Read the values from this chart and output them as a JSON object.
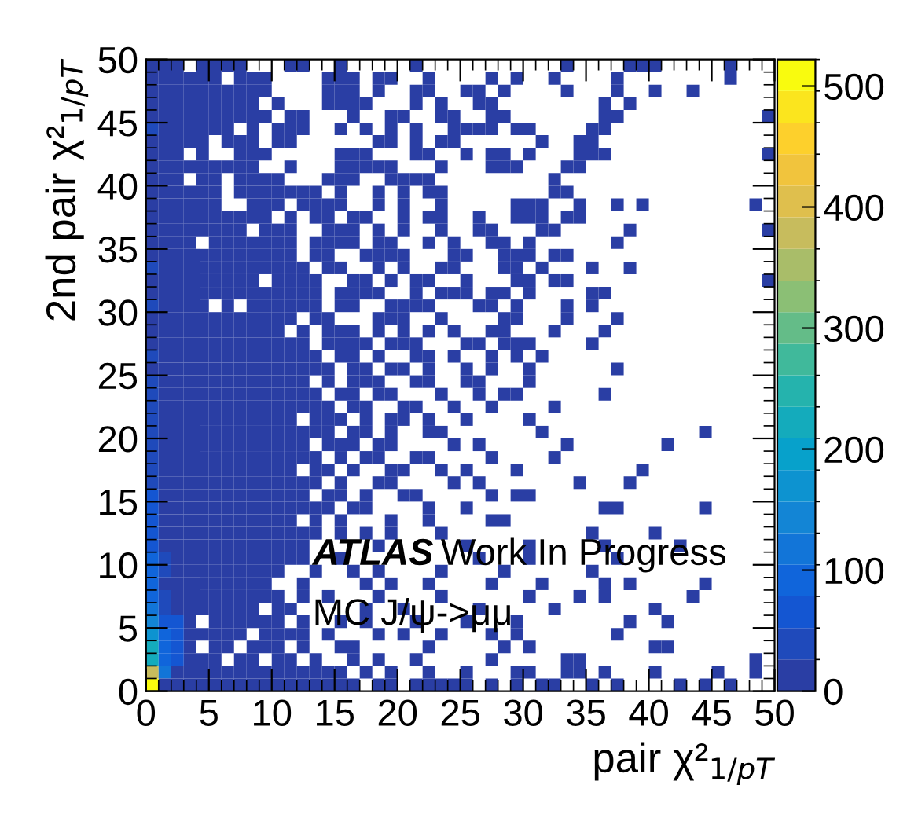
{
  "chart_data": {
    "type": "heatmap",
    "xlabel": "pair χ²$_{1/pT}$",
    "ylabel": "2nd pair χ²$_{1/pT}$",
    "annotations": [
      "ATLAS",
      "Work In Progress",
      "MC J/ψ->μμ"
    ],
    "xlim": [
      0,
      50
    ],
    "ylim": [
      0,
      50
    ],
    "xticks": [
      0,
      5,
      10,
      15,
      20,
      25,
      30,
      35,
      40,
      45,
      50
    ],
    "yticks": [
      0,
      5,
      10,
      15,
      20,
      25,
      30,
      35,
      40,
      45,
      50
    ],
    "clim": [
      0,
      522
    ],
    "cticks": [
      0,
      100,
      200,
      300,
      400,
      500
    ],
    "colors": [
      "#2a3ea4",
      "#0f5cdd",
      "#1481d6",
      "#06a4ca",
      "#2eb7a4",
      "#87bf77",
      "#d1bb59",
      "#fec832",
      "#f9fb0e"
    ],
    "cells": [
      [
        15,
        5,
        5,
        null,
        5,
        5,
        5,
        5,
        null,
        null,
        null,
        5,
        5,
        null,
        null,
        5,
        null,
        null,
        null,
        null,
        null,
        5,
        null,
        null,
        null,
        null,
        null,
        null,
        null,
        null,
        null,
        null,
        null,
        5,
        null,
        null,
        null,
        null,
        5,
        5,
        5,
        null,
        null,
        null,
        null,
        null,
        5,
        null,
        null,
        null
      ],
      [
        15,
        5,
        5,
        5,
        5,
        5,
        null,
        5,
        5,
        5,
        null,
        null,
        null,
        null,
        5,
        5,
        5,
        null,
        5,
        5,
        null,
        null,
        5,
        null,
        null,
        null,
        null,
        5,
        null,
        5,
        null,
        null,
        5,
        null,
        null,
        null,
        null,
        5,
        null,
        null,
        null,
        null,
        null,
        null,
        null,
        null,
        5,
        null,
        null,
        null
      ],
      [
        15,
        5,
        5,
        5,
        5,
        5,
        5,
        5,
        5,
        5,
        null,
        null,
        null,
        null,
        5,
        5,
        5,
        null,
        5,
        null,
        null,
        5,
        5,
        null,
        null,
        5,
        5,
        null,
        5,
        null,
        null,
        null,
        null,
        5,
        null,
        null,
        null,
        5,
        null,
        null,
        5,
        null,
        null,
        5,
        null,
        null,
        null,
        null,
        null,
        null
      ],
      [
        15,
        5,
        5,
        5,
        5,
        5,
        5,
        5,
        5,
        null,
        5,
        null,
        null,
        null,
        5,
        5,
        5,
        5,
        null,
        null,
        null,
        5,
        null,
        5,
        null,
        null,
        5,
        5,
        null,
        null,
        null,
        null,
        null,
        null,
        null,
        null,
        5,
        null,
        5,
        null,
        null,
        null,
        null,
        null,
        null,
        null,
        null,
        null,
        null,
        null
      ],
      [
        15,
        5,
        5,
        5,
        5,
        5,
        5,
        5,
        5,
        5,
        null,
        5,
        5,
        null,
        null,
        null,
        5,
        null,
        null,
        5,
        5,
        null,
        null,
        5,
        5,
        null,
        null,
        5,
        5,
        null,
        null,
        null,
        null,
        null,
        null,
        null,
        5,
        5,
        null,
        null,
        null,
        null,
        null,
        null,
        null,
        null,
        null,
        null,
        null,
        5
      ],
      [
        30,
        5,
        5,
        5,
        5,
        5,
        5,
        null,
        5,
        null,
        5,
        5,
        5,
        null,
        null,
        5,
        null,
        5,
        null,
        5,
        null,
        5,
        null,
        null,
        5,
        5,
        5,
        5,
        null,
        5,
        5,
        null,
        null,
        null,
        null,
        5,
        5,
        null,
        null,
        null,
        null,
        null,
        null,
        null,
        null,
        null,
        null,
        null,
        null,
        null
      ],
      [
        15,
        5,
        5,
        5,
        5,
        null,
        5,
        5,
        5,
        null,
        5,
        5,
        null,
        null,
        null,
        null,
        null,
        null,
        5,
        5,
        null,
        5,
        null,
        5,
        5,
        null,
        null,
        null,
        null,
        null,
        null,
        5,
        null,
        null,
        5,
        5,
        null,
        null,
        null,
        null,
        null,
        null,
        null,
        null,
        null,
        null,
        null,
        null,
        null,
        null
      ],
      [
        15,
        5,
        5,
        null,
        5,
        null,
        null,
        5,
        5,
        5,
        null,
        null,
        null,
        null,
        null,
        5,
        5,
        5,
        null,
        null,
        null,
        5,
        5,
        null,
        null,
        5,
        null,
        5,
        5,
        null,
        5,
        null,
        null,
        null,
        5,
        5,
        5,
        null,
        null,
        null,
        null,
        null,
        null,
        null,
        null,
        null,
        null,
        null,
        null,
        5
      ],
      [
        15,
        5,
        5,
        5,
        5,
        5,
        5,
        5,
        5,
        null,
        null,
        5,
        null,
        null,
        null,
        5,
        5,
        5,
        5,
        5,
        null,
        null,
        null,
        5,
        null,
        null,
        null,
        5,
        5,
        5,
        null,
        null,
        null,
        5,
        5,
        null,
        null,
        null,
        null,
        null,
        null,
        null,
        null,
        null,
        null,
        null,
        null,
        null,
        null,
        null
      ],
      [
        15,
        5,
        5,
        null,
        5,
        5,
        null,
        5,
        5,
        5,
        5,
        null,
        null,
        null,
        5,
        5,
        5,
        null,
        null,
        5,
        5,
        5,
        5,
        null,
        null,
        null,
        null,
        null,
        null,
        null,
        null,
        null,
        5,
        null,
        null,
        null,
        null,
        null,
        null,
        null,
        null,
        null,
        null,
        null,
        null,
        null,
        null,
        null,
        null,
        null
      ],
      [
        15,
        5,
        5,
        5,
        5,
        5,
        null,
        5,
        5,
        5,
        5,
        5,
        5,
        5,
        null,
        5,
        null,
        null,
        5,
        null,
        5,
        null,
        5,
        5,
        null,
        null,
        null,
        null,
        null,
        null,
        null,
        null,
        5,
        5,
        null,
        null,
        null,
        null,
        null,
        null,
        null,
        null,
        null,
        null,
        null,
        null,
        null,
        null,
        null,
        null
      ],
      [
        15,
        5,
        5,
        5,
        5,
        5,
        null,
        null,
        5,
        5,
        5,
        null,
        5,
        5,
        5,
        5,
        null,
        null,
        5,
        null,
        5,
        null,
        null,
        5,
        null,
        null,
        null,
        null,
        null,
        5,
        5,
        5,
        null,
        null,
        5,
        null,
        null,
        5,
        null,
        5,
        null,
        null,
        null,
        null,
        null,
        null,
        null,
        null,
        5,
        null
      ],
      [
        15,
        5,
        5,
        5,
        5,
        5,
        5,
        5,
        5,
        5,
        null,
        5,
        null,
        5,
        5,
        null,
        5,
        5,
        null,
        null,
        5,
        null,
        5,
        5,
        null,
        null,
        5,
        null,
        null,
        5,
        5,
        5,
        null,
        5,
        5,
        null,
        null,
        null,
        null,
        null,
        null,
        null,
        null,
        null,
        null,
        null,
        null,
        null,
        null,
        null
      ],
      [
        15,
        5,
        5,
        5,
        5,
        5,
        5,
        5,
        null,
        5,
        5,
        5,
        null,
        null,
        5,
        5,
        5,
        null,
        5,
        null,
        5,
        null,
        null,
        5,
        null,
        null,
        5,
        5,
        null,
        null,
        null,
        5,
        5,
        null,
        null,
        null,
        null,
        null,
        5,
        null,
        null,
        null,
        null,
        null,
        null,
        null,
        null,
        null,
        null,
        5
      ],
      [
        15,
        5,
        5,
        5,
        null,
        5,
        5,
        5,
        5,
        5,
        5,
        5,
        null,
        5,
        5,
        5,
        5,
        null,
        5,
        5,
        null,
        null,
        5,
        null,
        5,
        null,
        null,
        5,
        5,
        null,
        5,
        null,
        null,
        null,
        null,
        null,
        null,
        5,
        null,
        null,
        null,
        null,
        null,
        null,
        null,
        null,
        null,
        null,
        null,
        null
      ],
      [
        15,
        5,
        5,
        5,
        5,
        5,
        5,
        5,
        5,
        5,
        5,
        5,
        null,
        5,
        5,
        null,
        null,
        5,
        5,
        5,
        5,
        null,
        null,
        null,
        5,
        5,
        null,
        null,
        5,
        5,
        5,
        null,
        5,
        5,
        null,
        null,
        null,
        null,
        null,
        null,
        null,
        null,
        null,
        null,
        null,
        null,
        null,
        null,
        null,
        null
      ],
      [
        30,
        5,
        5,
        5,
        5,
        5,
        5,
        5,
        5,
        5,
        5,
        5,
        5,
        null,
        5,
        5,
        null,
        null,
        5,
        null,
        5,
        null,
        null,
        5,
        5,
        null,
        null,
        null,
        5,
        5,
        null,
        5,
        null,
        null,
        null,
        5,
        null,
        null,
        5,
        null,
        null,
        null,
        null,
        null,
        null,
        null,
        null,
        null,
        null,
        null
      ],
      [
        15,
        5,
        5,
        5,
        5,
        5,
        5,
        5,
        5,
        null,
        5,
        5,
        5,
        5,
        null,
        null,
        5,
        5,
        null,
        5,
        null,
        5,
        5,
        null,
        null,
        5,
        null,
        null,
        null,
        5,
        5,
        null,
        5,
        5,
        null,
        null,
        null,
        null,
        null,
        null,
        null,
        null,
        null,
        null,
        null,
        null,
        null,
        null,
        null,
        5
      ],
      [
        15,
        5,
        5,
        5,
        5,
        5,
        5,
        5,
        5,
        5,
        5,
        5,
        5,
        5,
        null,
        5,
        5,
        5,
        5,
        null,
        null,
        5,
        null,
        5,
        5,
        5,
        null,
        5,
        5,
        null,
        5,
        null,
        null,
        null,
        null,
        5,
        5,
        null,
        null,
        null,
        null,
        null,
        null,
        null,
        null,
        null,
        null,
        null,
        null,
        null
      ],
      [
        30,
        5,
        5,
        5,
        5,
        null,
        5,
        null,
        5,
        5,
        5,
        5,
        5,
        5,
        null,
        5,
        5,
        null,
        null,
        5,
        5,
        5,
        5,
        null,
        null,
        null,
        5,
        5,
        null,
        5,
        null,
        null,
        null,
        5,
        null,
        5,
        null,
        null,
        null,
        null,
        null,
        null,
        null,
        null,
        null,
        null,
        null,
        null,
        null,
        null
      ],
      [
        15,
        5,
        5,
        5,
        5,
        5,
        5,
        5,
        5,
        5,
        5,
        5,
        null,
        5,
        5,
        null,
        null,
        null,
        5,
        5,
        5,
        null,
        null,
        5,
        null,
        null,
        null,
        null,
        5,
        5,
        null,
        null,
        null,
        5,
        null,
        null,
        null,
        5,
        null,
        null,
        null,
        null,
        null,
        null,
        null,
        null,
        null,
        null,
        null,
        null
      ],
      [
        15,
        5,
        5,
        5,
        5,
        5,
        5,
        5,
        5,
        5,
        5,
        null,
        5,
        null,
        5,
        5,
        5,
        null,
        5,
        null,
        5,
        null,
        5,
        null,
        5,
        null,
        null,
        5,
        5,
        null,
        null,
        null,
        5,
        null,
        null,
        null,
        5,
        null,
        null,
        null,
        null,
        null,
        null,
        null,
        null,
        null,
        null,
        null,
        null,
        null
      ],
      [
        15,
        5,
        5,
        5,
        5,
        5,
        5,
        5,
        5,
        5,
        5,
        5,
        5,
        null,
        5,
        5,
        5,
        5,
        null,
        5,
        5,
        5,
        null,
        null,
        null,
        5,
        5,
        null,
        5,
        5,
        5,
        null,
        null,
        null,
        null,
        5,
        null,
        null,
        null,
        null,
        null,
        null,
        null,
        null,
        null,
        null,
        null,
        null,
        null,
        null
      ],
      [
        30,
        5,
        5,
        5,
        5,
        5,
        5,
        5,
        5,
        5,
        5,
        5,
        5,
        5,
        null,
        5,
        5,
        null,
        5,
        null,
        null,
        5,
        5,
        null,
        5,
        null,
        null,
        5,
        null,
        5,
        null,
        5,
        null,
        null,
        null,
        null,
        null,
        null,
        null,
        null,
        null,
        null,
        null,
        null,
        null,
        null,
        null,
        null,
        null,
        null
      ],
      [
        20,
        5,
        5,
        5,
        5,
        5,
        5,
        5,
        5,
        5,
        5,
        5,
        5,
        5,
        5,
        null,
        5,
        5,
        null,
        5,
        5,
        null,
        5,
        null,
        null,
        5,
        null,
        5,
        null,
        null,
        5,
        null,
        null,
        null,
        null,
        null,
        null,
        5,
        null,
        null,
        null,
        null,
        null,
        null,
        null,
        null,
        null,
        null,
        null,
        null
      ],
      [
        30,
        10,
        5,
        5,
        5,
        5,
        5,
        5,
        5,
        5,
        5,
        5,
        5,
        null,
        5,
        null,
        5,
        5,
        5,
        null,
        null,
        5,
        5,
        null,
        null,
        5,
        5,
        null,
        null,
        null,
        5,
        null,
        null,
        null,
        null,
        null,
        null,
        null,
        null,
        null,
        null,
        null,
        null,
        null,
        null,
        null,
        null,
        null,
        null,
        null
      ],
      [
        35,
        10,
        5,
        5,
        5,
        5,
        5,
        5,
        5,
        5,
        5,
        5,
        5,
        5,
        null,
        5,
        5,
        null,
        5,
        5,
        null,
        null,
        null,
        5,
        null,
        null,
        5,
        null,
        5,
        5,
        null,
        null,
        null,
        null,
        null,
        null,
        5,
        null,
        null,
        null,
        null,
        null,
        null,
        null,
        null,
        null,
        null,
        null,
        null,
        null
      ],
      [
        35,
        10,
        5,
        5,
        5,
        5,
        5,
        5,
        5,
        5,
        5,
        5,
        5,
        5,
        5,
        null,
        5,
        5,
        null,
        null,
        5,
        5,
        null,
        null,
        5,
        null,
        null,
        5,
        null,
        null,
        null,
        null,
        5,
        null,
        null,
        null,
        null,
        null,
        null,
        null,
        null,
        null,
        null,
        null,
        null,
        null,
        null,
        null,
        null,
        null
      ],
      [
        40,
        10,
        5,
        5,
        5,
        5,
        5,
        5,
        5,
        5,
        5,
        5,
        null,
        5,
        5,
        5,
        null,
        5,
        null,
        5,
        5,
        null,
        5,
        null,
        null,
        5,
        null,
        null,
        null,
        null,
        5,
        null,
        null,
        null,
        null,
        null,
        null,
        null,
        null,
        null,
        null,
        null,
        null,
        null,
        null,
        null,
        null,
        null,
        null,
        null
      ],
      [
        40,
        10,
        5,
        5,
        5,
        5,
        5,
        5,
        5,
        5,
        5,
        5,
        5,
        5,
        5,
        null,
        5,
        5,
        null,
        5,
        null,
        null,
        5,
        5,
        null,
        null,
        null,
        null,
        null,
        null,
        null,
        5,
        null,
        null,
        null,
        null,
        null,
        null,
        null,
        null,
        null,
        null,
        null,
        null,
        5,
        null,
        null,
        null,
        null,
        null
      ],
      [
        45,
        10,
        5,
        5,
        5,
        5,
        5,
        5,
        5,
        5,
        5,
        5,
        5,
        null,
        5,
        5,
        5,
        null,
        5,
        5,
        null,
        null,
        null,
        null,
        5,
        null,
        5,
        null,
        null,
        null,
        null,
        null,
        null,
        5,
        null,
        null,
        null,
        null,
        null,
        null,
        null,
        5,
        null,
        null,
        null,
        null,
        null,
        null,
        null,
        null
      ],
      [
        45,
        10,
        5,
        5,
        5,
        5,
        5,
        5,
        5,
        5,
        5,
        5,
        5,
        5,
        null,
        5,
        null,
        5,
        5,
        null,
        null,
        5,
        5,
        null,
        null,
        null,
        null,
        5,
        null,
        null,
        null,
        null,
        5,
        null,
        null,
        null,
        null,
        null,
        null,
        null,
        null,
        null,
        null,
        null,
        null,
        null,
        null,
        null,
        null,
        null
      ],
      [
        50,
        10,
        5,
        5,
        5,
        5,
        5,
        5,
        5,
        5,
        5,
        5,
        null,
        5,
        5,
        null,
        5,
        null,
        null,
        5,
        5,
        null,
        null,
        5,
        null,
        5,
        null,
        null,
        null,
        5,
        null,
        null,
        null,
        null,
        null,
        null,
        null,
        null,
        null,
        5,
        null,
        null,
        null,
        null,
        null,
        null,
        null,
        null,
        null,
        null
      ],
      [
        50,
        10,
        5,
        5,
        5,
        5,
        5,
        5,
        5,
        5,
        5,
        5,
        5,
        5,
        null,
        5,
        null,
        null,
        5,
        5,
        null,
        null,
        null,
        null,
        5,
        null,
        5,
        null,
        null,
        null,
        null,
        null,
        null,
        null,
        5,
        null,
        null,
        null,
        5,
        null,
        null,
        null,
        null,
        null,
        null,
        null,
        null,
        null,
        null,
        null
      ],
      [
        55,
        10,
        5,
        5,
        5,
        5,
        5,
        5,
        5,
        5,
        5,
        5,
        5,
        null,
        5,
        5,
        null,
        5,
        null,
        null,
        5,
        5,
        null,
        null,
        null,
        null,
        null,
        5,
        null,
        5,
        5,
        null,
        null,
        null,
        null,
        null,
        null,
        null,
        null,
        null,
        null,
        null,
        null,
        null,
        null,
        null,
        null,
        null,
        null,
        null
      ],
      [
        60,
        15,
        5,
        5,
        5,
        5,
        5,
        5,
        5,
        5,
        5,
        5,
        5,
        5,
        5,
        null,
        5,
        5,
        null,
        null,
        null,
        null,
        5,
        null,
        null,
        5,
        null,
        null,
        null,
        null,
        null,
        null,
        null,
        null,
        null,
        null,
        5,
        5,
        null,
        null,
        null,
        null,
        null,
        null,
        5,
        null,
        null,
        null,
        null,
        null
      ],
      [
        65,
        15,
        5,
        5,
        5,
        5,
        5,
        5,
        5,
        5,
        5,
        5,
        null,
        5,
        null,
        5,
        null,
        null,
        null,
        5,
        null,
        null,
        5,
        null,
        null,
        null,
        null,
        5,
        5,
        null,
        null,
        null,
        null,
        null,
        null,
        null,
        null,
        null,
        null,
        null,
        null,
        null,
        null,
        null,
        null,
        null,
        null,
        null,
        null,
        null
      ],
      [
        70,
        15,
        10,
        5,
        5,
        5,
        5,
        5,
        5,
        5,
        5,
        5,
        5,
        5,
        null,
        5,
        null,
        5,
        null,
        5,
        null,
        null,
        null,
        5,
        null,
        null,
        null,
        null,
        null,
        null,
        null,
        null,
        null,
        null,
        null,
        5,
        null,
        null,
        null,
        null,
        5,
        null,
        null,
        null,
        null,
        null,
        null,
        null,
        null,
        null
      ],
      [
        75,
        20,
        10,
        5,
        5,
        5,
        5,
        5,
        5,
        5,
        5,
        5,
        5,
        null,
        null,
        null,
        null,
        null,
        5,
        null,
        null,
        null,
        null,
        null,
        null,
        5,
        null,
        null,
        null,
        null,
        5,
        null,
        null,
        null,
        null,
        null,
        5,
        null,
        null,
        null,
        null,
        null,
        5,
        null,
        null,
        null,
        null,
        null,
        null,
        null
      ],
      [
        80,
        40,
        10,
        5,
        5,
        5,
        5,
        5,
        5,
        5,
        5,
        5,
        5,
        null,
        null,
        5,
        null,
        null,
        null,
        null,
        null,
        null,
        null,
        null,
        null,
        null,
        5,
        null,
        null,
        null,
        5,
        null,
        null,
        null,
        null,
        null,
        null,
        5,
        null,
        null,
        null,
        null,
        null,
        null,
        null,
        null,
        null,
        null,
        null,
        null
      ],
      [
        85,
        40,
        10,
        5,
        5,
        5,
        5,
        5,
        5,
        5,
        5,
        null,
        null,
        5,
        null,
        null,
        5,
        null,
        5,
        null,
        null,
        null,
        null,
        5,
        null,
        null,
        null,
        null,
        5,
        null,
        null,
        null,
        null,
        null,
        null,
        5,
        null,
        null,
        null,
        null,
        null,
        null,
        null,
        null,
        null,
        null,
        null,
        null,
        null,
        null
      ],
      [
        90,
        25,
        10,
        5,
        5,
        5,
        5,
        5,
        5,
        5,
        null,
        null,
        5,
        null,
        null,
        null,
        null,
        5,
        null,
        5,
        null,
        null,
        5,
        null,
        null,
        null,
        null,
        5,
        null,
        null,
        null,
        5,
        null,
        null,
        null,
        null,
        5,
        null,
        5,
        null,
        null,
        null,
        null,
        null,
        5,
        null,
        null,
        null,
        null,
        null
      ],
      [
        100,
        30,
        15,
        5,
        5,
        5,
        5,
        5,
        5,
        5,
        5,
        null,
        5,
        null,
        5,
        null,
        null,
        null,
        5,
        null,
        null,
        null,
        null,
        5,
        null,
        null,
        null,
        null,
        null,
        null,
        5,
        null,
        null,
        null,
        5,
        null,
        5,
        null,
        null,
        null,
        null,
        null,
        null,
        5,
        null,
        null,
        null,
        null,
        null,
        null
      ],
      [
        110,
        40,
        20,
        10,
        5,
        5,
        5,
        5,
        5,
        null,
        5,
        5,
        null,
        null,
        null,
        null,
        null,
        5,
        null,
        null,
        5,
        null,
        null,
        null,
        null,
        null,
        5,
        null,
        null,
        null,
        null,
        null,
        5,
        null,
        null,
        null,
        null,
        null,
        null,
        null,
        5,
        null,
        null,
        null,
        null,
        null,
        null,
        null,
        null,
        null
      ],
      [
        150,
        60,
        55,
        10,
        null,
        5,
        5,
        5,
        5,
        5,
        5,
        null,
        5,
        null,
        null,
        5,
        null,
        5,
        null,
        null,
        null,
        5,
        null,
        null,
        null,
        5,
        null,
        null,
        null,
        5,
        null,
        null,
        null,
        null,
        null,
        null,
        null,
        null,
        5,
        null,
        null,
        5,
        null,
        null,
        null,
        null,
        null,
        null,
        null,
        null
      ],
      [
        170,
        80,
        60,
        10,
        5,
        5,
        5,
        5,
        null,
        5,
        5,
        5,
        5,
        null,
        5,
        null,
        null,
        null,
        5,
        null,
        5,
        null,
        null,
        5,
        null,
        null,
        null,
        5,
        null,
        5,
        null,
        null,
        null,
        null,
        null,
        null,
        null,
        5,
        null,
        null,
        null,
        null,
        null,
        null,
        null,
        null,
        null,
        null,
        null,
        null
      ],
      [
        215,
        90,
        60,
        10,
        null,
        5,
        5,
        null,
        5,
        5,
        5,
        null,
        5,
        null,
        null,
        5,
        5,
        null,
        null,
        null,
        null,
        null,
        5,
        null,
        null,
        null,
        null,
        null,
        5,
        null,
        5,
        null,
        null,
        null,
        null,
        null,
        null,
        null,
        null,
        null,
        5,
        5,
        null,
        null,
        null,
        null,
        null,
        null,
        null,
        null
      ],
      [
        230,
        100,
        60,
        15,
        5,
        5,
        null,
        5,
        5,
        null,
        5,
        5,
        null,
        5,
        null,
        null,
        5,
        null,
        5,
        null,
        null,
        5,
        null,
        null,
        null,
        null,
        null,
        5,
        null,
        null,
        null,
        null,
        null,
        5,
        5,
        null,
        null,
        null,
        null,
        null,
        null,
        null,
        null,
        null,
        null,
        null,
        null,
        null,
        5,
        null
      ],
      [
        370,
        110,
        20,
        10,
        5,
        5,
        5,
        5,
        5,
        5,
        5,
        5,
        5,
        5,
        5,
        5,
        null,
        5,
        null,
        5,
        null,
        null,
        5,
        null,
        null,
        5,
        null,
        null,
        null,
        5,
        5,
        null,
        null,
        5,
        5,
        null,
        5,
        null,
        null,
        null,
        5,
        null,
        null,
        null,
        null,
        5,
        null,
        null,
        5,
        null
      ],
      [
        510,
        15,
        10,
        5,
        5,
        5,
        5,
        5,
        5,
        5,
        5,
        5,
        5,
        5,
        5,
        5,
        5,
        null,
        5,
        5,
        null,
        5,
        5,
        5,
        5,
        5,
        null,
        5,
        null,
        5,
        null,
        5,
        5,
        null,
        null,
        5,
        null,
        5,
        null,
        null,
        null,
        null,
        5,
        null,
        5,
        null,
        5,
        null,
        null,
        null
      ]
    ]
  }
}
